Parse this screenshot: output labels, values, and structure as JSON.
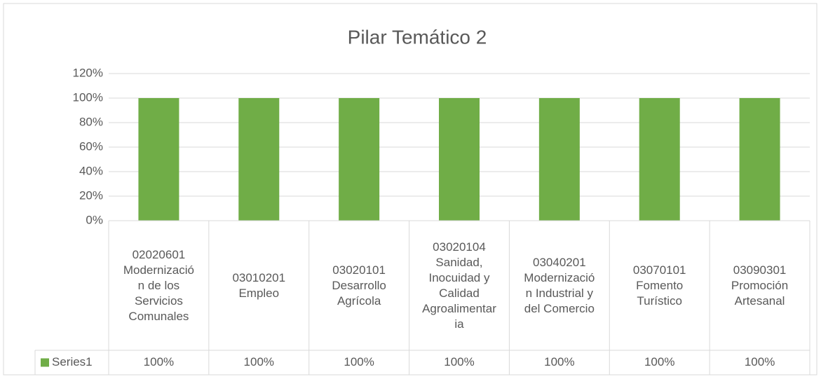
{
  "chart_data": {
    "type": "bar",
    "title": "Pilar Temático 2",
    "categories": [
      "02020601 Modernización de los Servicios Comunales",
      "03010201 Empleo",
      "03020101 Desarrollo Agrícola",
      "03020104 Sanidad, Inocuidad y Calidad Agroalimentaria",
      "03040201 Modernización Industrial y del Comercio",
      "03070101 Fomento Turístico",
      "03090301 Promoción Artesanal"
    ],
    "series": [
      {
        "name": "Series1",
        "color": "#70ad47",
        "values": [
          100,
          100,
          100,
          100,
          100,
          100,
          100
        ],
        "value_labels": [
          "100%",
          "100%",
          "100%",
          "100%",
          "100%",
          "100%",
          "100%"
        ]
      }
    ],
    "ylim": [
      0,
      120
    ],
    "yticks": [
      {
        "value": 0,
        "label": "0%"
      },
      {
        "value": 20,
        "label": "20%"
      },
      {
        "value": 40,
        "label": "40%"
      },
      {
        "value": 60,
        "label": "60%"
      },
      {
        "value": 80,
        "label": "80%"
      },
      {
        "value": 100,
        "label": "100%"
      },
      {
        "value": 120,
        "label": "120%"
      }
    ],
    "grid": true
  }
}
